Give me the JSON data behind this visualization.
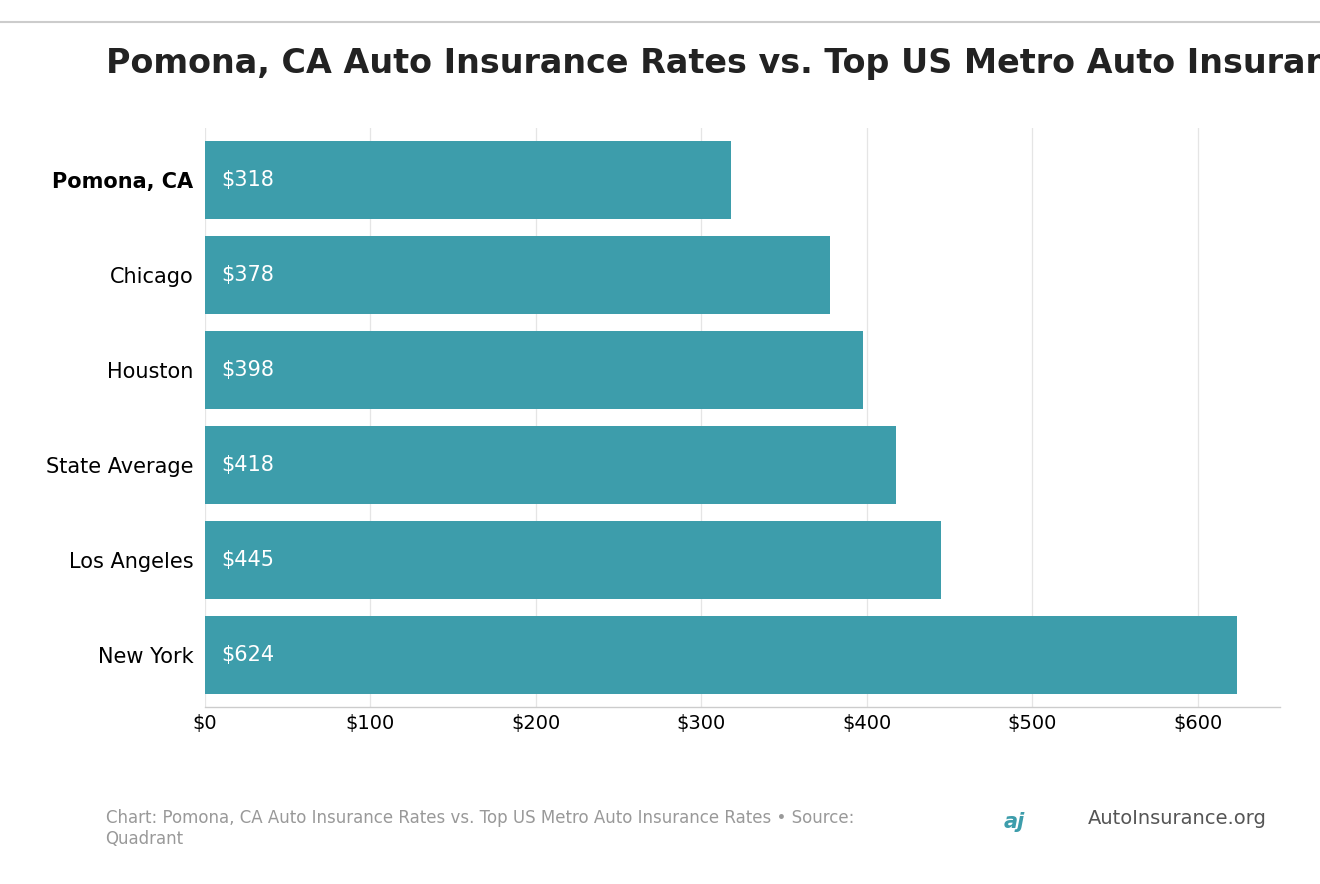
{
  "title": "Pomona, CA Auto Insurance Rates vs. Top US Metro Auto Insurance Rates",
  "categories": [
    "Pomona, CA",
    "Chicago",
    "Houston",
    "State Average",
    "Los Angeles",
    "New York"
  ],
  "values": [
    318,
    378,
    398,
    418,
    445,
    624
  ],
  "bar_color": "#3d9dab",
  "label_color": "#ffffff",
  "title_fontsize": 24,
  "bar_label_fontsize": 15,
  "tick_fontsize": 14,
  "ytick_fontsize": 15,
  "xlim": [
    0,
    650
  ],
  "xticks": [
    0,
    100,
    200,
    300,
    400,
    500,
    600
  ],
  "background_color": "#ffffff",
  "footer_text": "Chart: Pomona, CA Auto Insurance Rates vs. Top US Metro Auto Insurance Rates • Source:\nQuadrant",
  "footer_fontsize": 12,
  "top_line_color": "#cccccc",
  "bar_height": 0.82
}
